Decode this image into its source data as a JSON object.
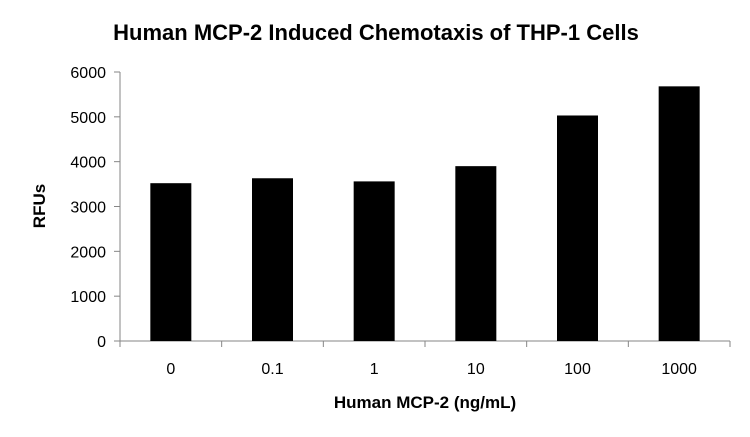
{
  "chart_data": {
    "type": "bar",
    "title": "Human MCP-2 Induced Chemotaxis of THP-1 Cells",
    "xlabel": "Human MCP-2 (ng/mL)",
    "ylabel": "RFUs",
    "categories": [
      "0",
      "0.1",
      "1",
      "10",
      "100",
      "1000"
    ],
    "values": [
      3520,
      3630,
      3560,
      3900,
      5030,
      5680
    ],
    "ylim": [
      0,
      6000
    ],
    "yticks": [
      0,
      1000,
      2000,
      3000,
      4000,
      5000,
      6000
    ],
    "grid": false,
    "legend": "none",
    "bar_color": "#000000",
    "axis_color": "#868686"
  }
}
